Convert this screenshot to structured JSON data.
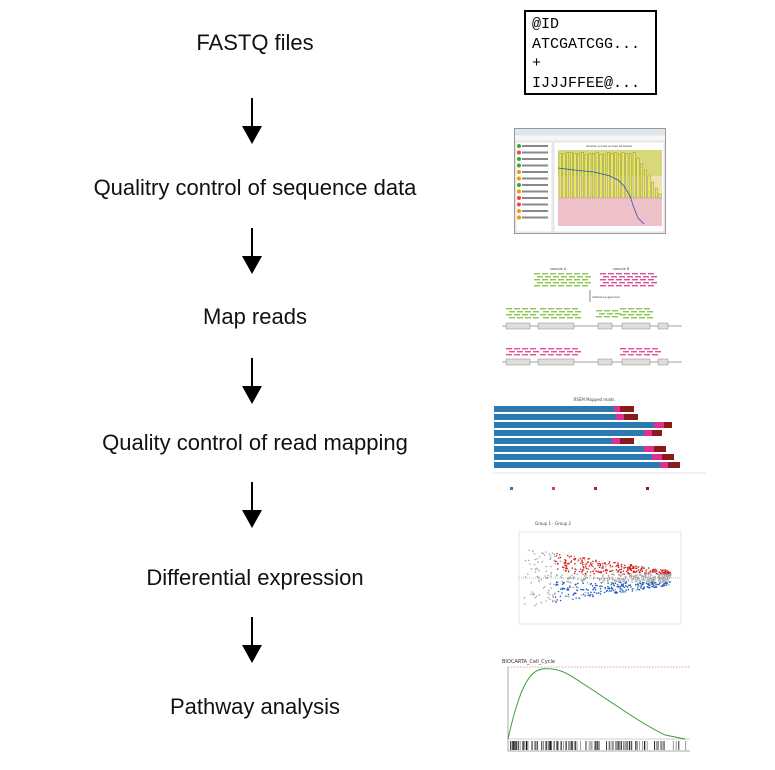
{
  "steps": [
    {
      "label": "FASTQ files"
    },
    {
      "label": "Qualitry control of sequence data"
    },
    {
      "label": "Map reads"
    },
    {
      "label": "Quality control of read mapping"
    },
    {
      "label": "Differential expression"
    },
    {
      "label": "Pathway analysis"
    }
  ],
  "fastq": {
    "lines": [
      "@ID",
      "ATCGATCGG...",
      "+",
      "IJJJFFEE@..."
    ]
  },
  "thumbnails": {
    "fastqc": {
      "icon": "fastqc-window-screenshot"
    },
    "mapping": {
      "sample_a": "sample A",
      "sample_b": "sample B",
      "reference": "reference genome"
    },
    "rsem": {
      "title": "RSEM Mapped reads"
    },
    "volcano": {
      "title": "Group 1 - Group 2"
    },
    "gsea": {
      "title": "BIOCARTA_Cell_Cycle"
    }
  },
  "colors": {
    "arrow": "#000000",
    "blue": "#2a7ab0",
    "pink": "#e0308f",
    "darkred": "#8b1a1a",
    "green": "#3a9a3a",
    "red": "#d62020",
    "volcano_blue": "#2060c0"
  }
}
